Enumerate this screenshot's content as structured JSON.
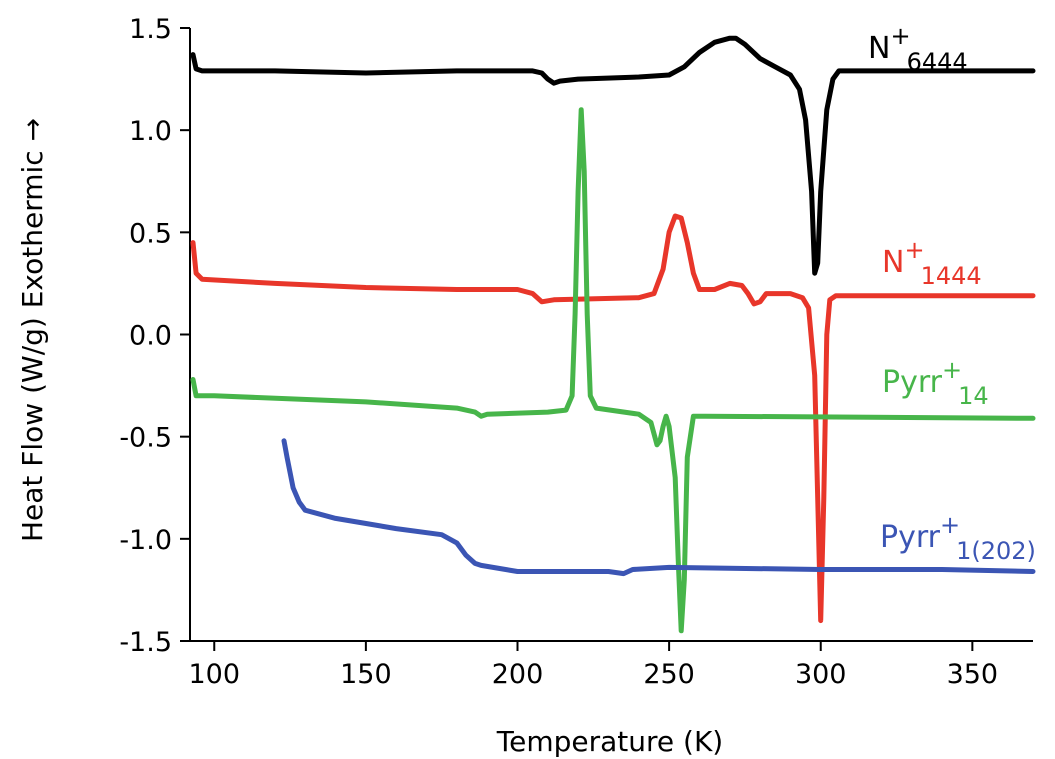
{
  "chart_data": {
    "type": "line",
    "xlabel": "Temperature (K)",
    "ylabel": "Heat Flow (W/g) Exothermic →",
    "xlim": [
      92,
      370
    ],
    "ylim": [
      -1.5,
      1.5
    ],
    "x_ticks": [
      100,
      150,
      200,
      250,
      300,
      350
    ],
    "y_ticks": [
      1.5,
      1.0,
      0.5,
      0.0,
      -0.5,
      -1.0,
      -1.5
    ],
    "x_tick_labels": [
      "100",
      "150",
      "200",
      "250",
      "300",
      "350"
    ],
    "y_tick_labels": [
      "1.5",
      "1.0",
      "0.5",
      "0.0",
      "-0.5",
      "-1.0",
      "-1.5"
    ],
    "grid": false,
    "series": [
      {
        "name": "N+6444",
        "label_main": "N",
        "label_sup": "+",
        "label_sub": "6444",
        "color": "#000000",
        "points": [
          [
            93,
            1.37
          ],
          [
            94,
            1.3
          ],
          [
            96,
            1.29
          ],
          [
            120,
            1.29
          ],
          [
            150,
            1.28
          ],
          [
            180,
            1.29
          ],
          [
            200,
            1.29
          ],
          [
            205,
            1.29
          ],
          [
            208,
            1.28
          ],
          [
            210,
            1.25
          ],
          [
            212,
            1.23
          ],
          [
            214,
            1.24
          ],
          [
            220,
            1.25
          ],
          [
            240,
            1.26
          ],
          [
            250,
            1.27
          ],
          [
            255,
            1.31
          ],
          [
            260,
            1.38
          ],
          [
            265,
            1.43
          ],
          [
            270,
            1.45
          ],
          [
            272,
            1.45
          ],
          [
            275,
            1.42
          ],
          [
            280,
            1.35
          ],
          [
            285,
            1.31
          ],
          [
            290,
            1.27
          ],
          [
            293,
            1.2
          ],
          [
            295,
            1.05
          ],
          [
            297,
            0.7
          ],
          [
            298,
            0.3
          ],
          [
            299,
            0.35
          ],
          [
            300,
            0.7
          ],
          [
            302,
            1.1
          ],
          [
            304,
            1.25
          ],
          [
            306,
            1.29
          ],
          [
            320,
            1.29
          ],
          [
            350,
            1.29
          ],
          [
            370,
            1.29
          ]
        ]
      },
      {
        "name": "N+1444",
        "label_main": "N",
        "label_sup": "+",
        "label_sub": "1444",
        "color": "#e8362a",
        "points": [
          [
            93,
            0.45
          ],
          [
            94,
            0.3
          ],
          [
            96,
            0.27
          ],
          [
            120,
            0.25
          ],
          [
            150,
            0.23
          ],
          [
            180,
            0.22
          ],
          [
            200,
            0.22
          ],
          [
            205,
            0.2
          ],
          [
            208,
            0.16
          ],
          [
            212,
            0.17
          ],
          [
            240,
            0.18
          ],
          [
            245,
            0.2
          ],
          [
            248,
            0.32
          ],
          [
            250,
            0.5
          ],
          [
            252,
            0.58
          ],
          [
            254,
            0.57
          ],
          [
            256,
            0.45
          ],
          [
            258,
            0.3
          ],
          [
            260,
            0.22
          ],
          [
            265,
            0.22
          ],
          [
            270,
            0.25
          ],
          [
            274,
            0.24
          ],
          [
            276,
            0.2
          ],
          [
            278,
            0.15
          ],
          [
            280,
            0.16
          ],
          [
            282,
            0.2
          ],
          [
            290,
            0.2
          ],
          [
            294,
            0.18
          ],
          [
            296,
            0.13
          ],
          [
            298,
            -0.2
          ],
          [
            299,
            -0.8
          ],
          [
            300,
            -1.4
          ],
          [
            301,
            -0.8
          ],
          [
            302,
            0.0
          ],
          [
            303,
            0.17
          ],
          [
            305,
            0.19
          ],
          [
            370,
            0.19
          ]
        ]
      },
      {
        "name": "Pyrr+14",
        "label_main": "Pyrr",
        "label_sup": "+",
        "label_sub": "14",
        "color": "#47b54a",
        "points": [
          [
            93,
            -0.22
          ],
          [
            94,
            -0.3
          ],
          [
            100,
            -0.3
          ],
          [
            150,
            -0.33
          ],
          [
            180,
            -0.36
          ],
          [
            186,
            -0.38
          ],
          [
            188,
            -0.4
          ],
          [
            190,
            -0.39
          ],
          [
            210,
            -0.38
          ],
          [
            216,
            -0.37
          ],
          [
            218,
            -0.3
          ],
          [
            219,
            0.1
          ],
          [
            220,
            0.7
          ],
          [
            221,
            1.1
          ],
          [
            222,
            0.8
          ],
          [
            223,
            0.1
          ],
          [
            224,
            -0.3
          ],
          [
            226,
            -0.36
          ],
          [
            240,
            -0.39
          ],
          [
            244,
            -0.43
          ],
          [
            246,
            -0.54
          ],
          [
            247,
            -0.52
          ],
          [
            248,
            -0.45
          ],
          [
            249,
            -0.4
          ],
          [
            250,
            -0.45
          ],
          [
            252,
            -0.7
          ],
          [
            253,
            -1.1
          ],
          [
            254,
            -1.45
          ],
          [
            255,
            -1.2
          ],
          [
            256,
            -0.6
          ],
          [
            258,
            -0.4
          ],
          [
            262,
            -0.4
          ],
          [
            370,
            -0.41
          ]
        ]
      },
      {
        "name": "Pyrr+1(202)",
        "label_main": "Pyrr",
        "label_sup": "+",
        "label_sub": "1(202)",
        "color": "#3b55b4",
        "points": [
          [
            123,
            -0.52
          ],
          [
            124,
            -0.6
          ],
          [
            126,
            -0.75
          ],
          [
            128,
            -0.82
          ],
          [
            130,
            -0.86
          ],
          [
            140,
            -0.9
          ],
          [
            160,
            -0.95
          ],
          [
            175,
            -0.98
          ],
          [
            180,
            -1.02
          ],
          [
            183,
            -1.08
          ],
          [
            186,
            -1.12
          ],
          [
            188,
            -1.13
          ],
          [
            200,
            -1.16
          ],
          [
            220,
            -1.16
          ],
          [
            230,
            -1.16
          ],
          [
            235,
            -1.17
          ],
          [
            238,
            -1.15
          ],
          [
            250,
            -1.14
          ],
          [
            300,
            -1.15
          ],
          [
            340,
            -1.15
          ],
          [
            370,
            -1.16
          ]
        ]
      }
    ]
  }
}
